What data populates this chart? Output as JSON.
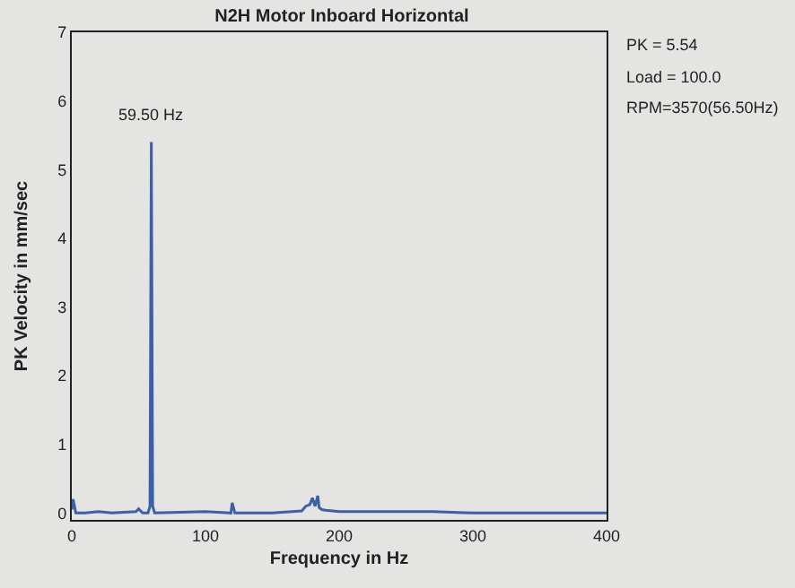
{
  "chart_data": {
    "type": "line",
    "title": "N2H Motor Inboard Horizontal",
    "xlabel": "Frequency in Hz",
    "ylabel": "PK Velocity in mm/sec",
    "x": [
      0,
      1,
      3,
      10,
      20,
      30,
      48,
      50,
      53,
      57,
      58.5,
      59.5,
      60.5,
      62,
      100,
      119,
      120,
      122,
      150,
      172,
      175,
      178,
      180,
      182,
      184,
      185,
      187,
      190,
      200,
      270,
      300,
      400
    ],
    "series": [
      {
        "color": "#3b5fa8",
        "values": [
          0.05,
          0.2,
          0.0,
          0.0,
          0.02,
          0.0,
          0.02,
          0.06,
          0.0,
          0.0,
          0.1,
          5.4,
          0.1,
          0.0,
          0.02,
          0.0,
          0.15,
          0.0,
          0.0,
          0.03,
          0.1,
          0.12,
          0.22,
          0.1,
          0.25,
          0.08,
          0.05,
          0.04,
          0.02,
          0.02,
          0.0,
          0.0
        ]
      }
    ],
    "annotations": [
      {
        "text": "59.50 Hz",
        "x": 59.5,
        "y": 5.4
      },
      "PK = 5.54",
      "Load = 100.0",
      "RPM=3570(56.50Hz)"
    ],
    "xlim": [
      0,
      400
    ],
    "ylim": [
      -0.1,
      7
    ],
    "xticks": [
      0,
      100,
      200,
      300,
      400
    ],
    "yticks": [
      0,
      1,
      2,
      3,
      4,
      5,
      6,
      7
    ],
    "grid": false,
    "legend": false,
    "marker": "none",
    "line_style": "solid"
  }
}
